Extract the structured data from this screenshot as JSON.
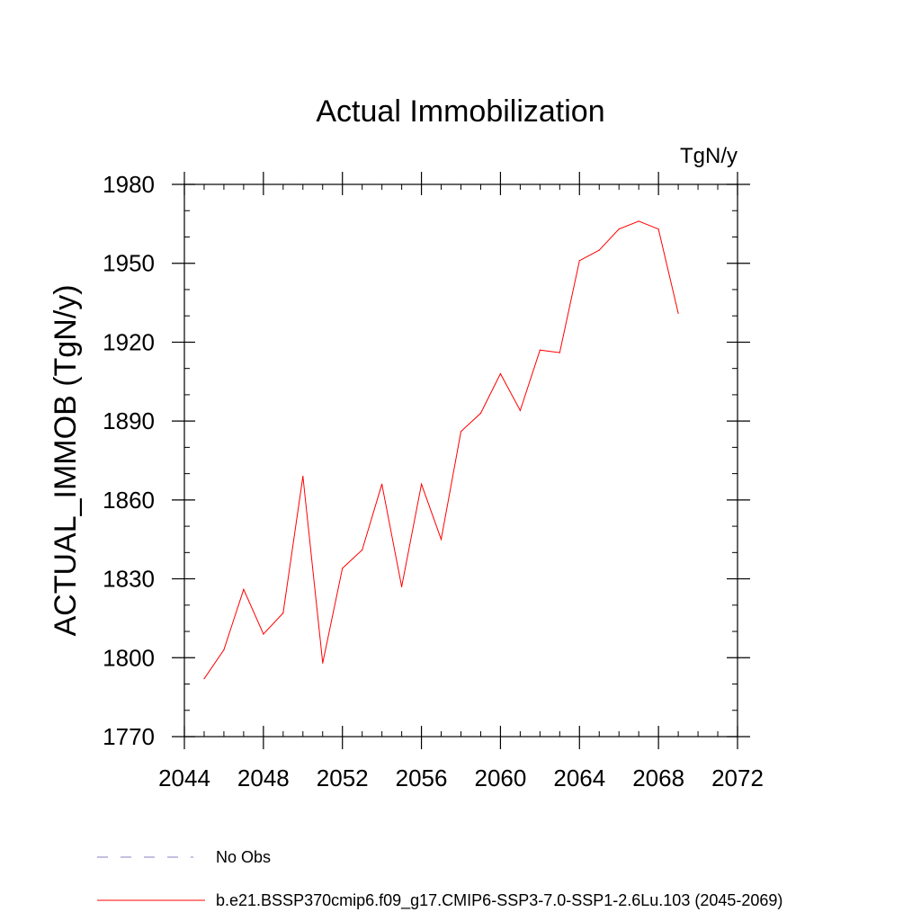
{
  "chart_data": {
    "type": "line",
    "title": "Actual Immobilization",
    "units_label": "TgN/y",
    "xlabel": "",
    "ylabel": "ACTUAL_IMMOB  (TgN/y)",
    "xlim": [
      2044,
      2072
    ],
    "ylim": [
      1770,
      1980
    ],
    "x_ticks": [
      2044,
      2048,
      2052,
      2056,
      2060,
      2064,
      2068,
      2072
    ],
    "x_tick_labels": [
      "2044",
      "2048",
      "2052",
      "2056",
      "2060",
      "2064",
      "2068",
      "2072"
    ],
    "y_ticks": [
      1770,
      1800,
      1830,
      1860,
      1890,
      1920,
      1950,
      1980
    ],
    "y_tick_labels": [
      "1770",
      "1800",
      "1830",
      "1860",
      "1890",
      "1920",
      "1950",
      "1980"
    ],
    "x_minor_step": 1,
    "y_minor_step": 10,
    "grid": false,
    "legend_placement": "bottom",
    "series": [
      {
        "name": "b.e21.BSSP370cmip6.f09_g17.CMIP6-SSP3-7.0-SSP1-2.6Lu.103 (2045-2069)",
        "color": "#ff0000",
        "style": "solid",
        "x": [
          2045,
          2046,
          2047,
          2048,
          2049,
          2050,
          2051,
          2052,
          2053,
          2054,
          2055,
          2056,
          2057,
          2058,
          2059,
          2060,
          2061,
          2062,
          2063,
          2064,
          2065,
          2066,
          2067,
          2068,
          2069
        ],
        "values": [
          1792,
          1803,
          1826,
          1809,
          1817,
          1869,
          1798,
          1834,
          1841,
          1866,
          1827,
          1866,
          1845,
          1886,
          1893,
          1908,
          1894,
          1917,
          1916,
          1951,
          1955,
          1963,
          1966,
          1963,
          1931
        ]
      }
    ],
    "legend": [
      {
        "name": "No Obs",
        "color": "#8a7fc4",
        "style": "dashed"
      },
      {
        "name": "b.e21.BSSP370cmip6.f09_g17.CMIP6-SSP3-7.0-SSP1-2.6Lu.103 (2045-2069)",
        "color": "#ff0000",
        "style": "solid"
      }
    ]
  }
}
